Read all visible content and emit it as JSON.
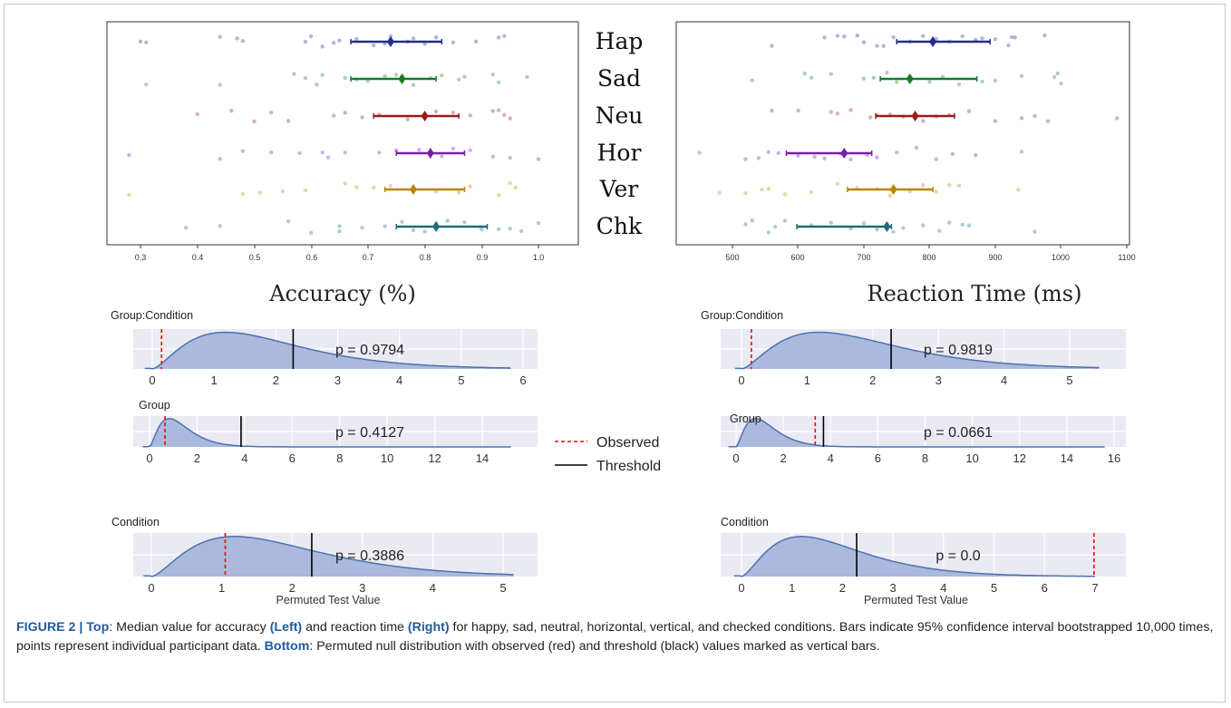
{
  "figure": {
    "top": {
      "categories": [
        "Hap",
        "Sad",
        "Neu",
        "Hor",
        "Ver",
        "Chk"
      ],
      "colors": [
        "#1f2f8c",
        "#1a7a2a",
        "#9b1b1b",
        "#7a1fa8",
        "#b8860b",
        "#1a6e78"
      ]
    },
    "bottom": {
      "legend": {
        "observed": "Observed",
        "threshold": "Threshold"
      },
      "observed_color": "#ff0000",
      "threshold_color": "#000000",
      "fill_color": "#9fb0d8",
      "line_color": "#4c72b0"
    }
  },
  "chart_data": [
    {
      "type": "scatter",
      "panel": "top-left",
      "title": "Accuracy (%)",
      "xlim": [
        0.27,
        1.01
      ],
      "xticks": [
        "0.3",
        "0.4",
        "0.5",
        "0.6",
        "0.7",
        "0.8",
        "0.9",
        "1.0"
      ],
      "series": [
        {
          "name": "Hap",
          "median": 0.74,
          "ci": [
            0.67,
            0.83
          ],
          "points": [
            0.3,
            0.31,
            0.44,
            0.47,
            0.48,
            0.59,
            0.6,
            0.62,
            0.64,
            0.65,
            0.68,
            0.71,
            0.73,
            0.74,
            0.77,
            0.78,
            0.8,
            0.82,
            0.85,
            0.89,
            0.93,
            0.94
          ]
        },
        {
          "name": "Sad",
          "median": 0.76,
          "ci": [
            0.67,
            0.82
          ],
          "points": [
            0.31,
            0.44,
            0.57,
            0.59,
            0.61,
            0.62,
            0.66,
            0.68,
            0.7,
            0.73,
            0.75,
            0.78,
            0.81,
            0.83,
            0.86,
            0.87,
            0.92,
            0.93,
            0.98
          ]
        },
        {
          "name": "Neu",
          "median": 0.8,
          "ci": [
            0.71,
            0.86
          ],
          "points": [
            0.4,
            0.46,
            0.5,
            0.53,
            0.56,
            0.64,
            0.66,
            0.69,
            0.72,
            0.77,
            0.8,
            0.82,
            0.85,
            0.88,
            0.92,
            0.93,
            0.94,
            0.95
          ]
        },
        {
          "name": "Hor",
          "median": 0.81,
          "ci": [
            0.75,
            0.87
          ],
          "points": [
            0.28,
            0.44,
            0.48,
            0.53,
            0.58,
            0.62,
            0.63,
            0.66,
            0.72,
            0.75,
            0.79,
            0.83,
            0.85,
            0.88,
            0.92,
            0.95,
            1.0
          ]
        },
        {
          "name": "Ver",
          "median": 0.78,
          "ci": [
            0.73,
            0.87
          ],
          "points": [
            0.28,
            0.48,
            0.51,
            0.55,
            0.59,
            0.66,
            0.68,
            0.71,
            0.74,
            0.78,
            0.82,
            0.86,
            0.88,
            0.93,
            0.95,
            0.96
          ]
        },
        {
          "name": "Chk",
          "median": 0.82,
          "ci": [
            0.75,
            0.91
          ],
          "points": [
            0.38,
            0.44,
            0.56,
            0.6,
            0.65,
            0.65,
            0.69,
            0.73,
            0.76,
            0.78,
            0.8,
            0.82,
            0.84,
            0.87,
            0.9,
            0.93,
            0.95,
            0.97,
            1.0
          ]
        }
      ]
    },
    {
      "type": "scatter",
      "panel": "top-right",
      "title": "Reaction Time (ms)",
      "xlim": [
        430,
        1110
      ],
      "xticks": [
        "500",
        "600",
        "700",
        "800",
        "900",
        "1000",
        "1100"
      ],
      "series": [
        {
          "name": "Hap",
          "median": 805,
          "ci": [
            750,
            892
          ],
          "points": [
            560,
            640,
            660,
            670,
            690,
            700,
            720,
            730,
            745,
            770,
            790,
            810,
            830,
            850,
            870,
            880,
            900,
            920,
            925,
            930,
            975
          ]
        },
        {
          "name": "Sad",
          "median": 770,
          "ci": [
            725,
            872
          ],
          "points": [
            530,
            610,
            620,
            650,
            700,
            715,
            735,
            750,
            770,
            800,
            820,
            845,
            880,
            900,
            940,
            990,
            995,
            1000
          ]
        },
        {
          "name": "Neu",
          "median": 778,
          "ci": [
            718,
            838
          ],
          "points": [
            560,
            600,
            650,
            660,
            680,
            710,
            720,
            740,
            760,
            790,
            810,
            830,
            860,
            900,
            940,
            960,
            980,
            1085
          ]
        },
        {
          "name": "Hor",
          "median": 670,
          "ci": [
            582,
            712
          ],
          "points": [
            450,
            520,
            540,
            555,
            570,
            600,
            625,
            640,
            665,
            680,
            705,
            720,
            750,
            780,
            810,
            835,
            870,
            940
          ]
        },
        {
          "name": "Ver",
          "median": 745,
          "ci": [
            675,
            805
          ],
          "points": [
            480,
            520,
            545,
            555,
            580,
            620,
            660,
            690,
            720,
            740,
            770,
            790,
            810,
            830,
            845,
            935
          ]
        },
        {
          "name": "Chk",
          "median": 735,
          "ci": [
            598,
            742
          ],
          "points": [
            520,
            530,
            555,
            565,
            580,
            620,
            650,
            680,
            700,
            720,
            735,
            745,
            760,
            790,
            815,
            830,
            850,
            860,
            960
          ]
        }
      ]
    },
    {
      "type": "area",
      "panel": "bottom-left-1",
      "label": "Group:Condition",
      "p_text": "p = 0.9794",
      "xmin": -0.35,
      "xmax": 6.2,
      "xticks": [
        0,
        1,
        2,
        3,
        4,
        5,
        6
      ],
      "observed": 0.15,
      "threshold": 2.28,
      "peak": 0.6,
      "tail": 1.3,
      "end": 5.8,
      "hist_bin": 0.12
    },
    {
      "type": "area",
      "panel": "bottom-left-2",
      "label": "Group",
      "p_text": "p = 0.4127",
      "xmin": -0.8,
      "xmax": 16.5,
      "xticks": [
        0,
        2,
        4,
        6,
        8,
        10,
        12,
        14
      ],
      "observed": 0.65,
      "threshold": 3.85,
      "peak": 0.15,
      "tail": 1.5,
      "end": 15.2,
      "hist_bin": 0.45
    },
    {
      "type": "area",
      "panel": "bottom-left-3",
      "label": "Condition",
      "p_text": "p = 0.3886",
      "xlabel": "Permuted Test Value",
      "xmin": -0.35,
      "xmax": 5.5,
      "xticks": [
        0,
        1,
        2,
        3,
        4,
        5
      ],
      "observed": 1.05,
      "threshold": 2.28,
      "peak": 0.6,
      "tail": 1.3,
      "end": 5.15,
      "hist_bin": 0.12
    },
    {
      "type": "area",
      "panel": "bottom-right-1",
      "label": "Group:Condition",
      "p_text": "p = 0.9819",
      "xmin": -0.35,
      "xmax": 5.75,
      "xticks": [
        0,
        1,
        2,
        3,
        4,
        5
      ],
      "observed": 0.15,
      "threshold": 2.28,
      "peak": 0.6,
      "tail": 1.3,
      "end": 5.45,
      "hist_bin": 0.12
    },
    {
      "type": "area",
      "panel": "bottom-right-2",
      "label": "Group",
      "p_text": "p = 0.0661",
      "xlabel": "",
      "xmin": -0.8,
      "xmax": 16.5,
      "xticks": [
        0,
        2,
        4,
        6,
        8,
        10,
        12,
        14,
        16
      ],
      "observed": 3.35,
      "threshold": 3.7,
      "peak": 0.15,
      "tail": 1.5,
      "end": 15.6,
      "hist_bin": 0.45
    },
    {
      "type": "area",
      "panel": "bottom-right-3",
      "label": "Condition",
      "p_text": "p = 0.0",
      "xlabel": "Permuted Test Value",
      "xmin": -0.35,
      "xmax": 7.35,
      "xticks": [
        0,
        1,
        2,
        3,
        4,
        5,
        6,
        7
      ],
      "observed": 6.98,
      "threshold": 2.28,
      "peak": 0.6,
      "tail": 1.3,
      "end": 7.0,
      "hist_bin": 0.12
    }
  ],
  "caption": {
    "figure_label": "FIGURE 2 |",
    "top_label": "Top",
    "top_text_1": ": Median value for accuracy ",
    "left": "(Left)",
    "top_text_2": " and reaction time ",
    "right": "(Right)",
    "top_text_3": " for happy, sad, neutral, horizontal, vertical, and checked conditions. Bars indicate 95% confidence interval bootstrapped 10,000 times, points represent individual participant data. ",
    "bottom_label": "Bottom",
    "bottom_text": ": Permuted null distribution with observed (red) and threshold (black) values marked as vertical bars."
  }
}
